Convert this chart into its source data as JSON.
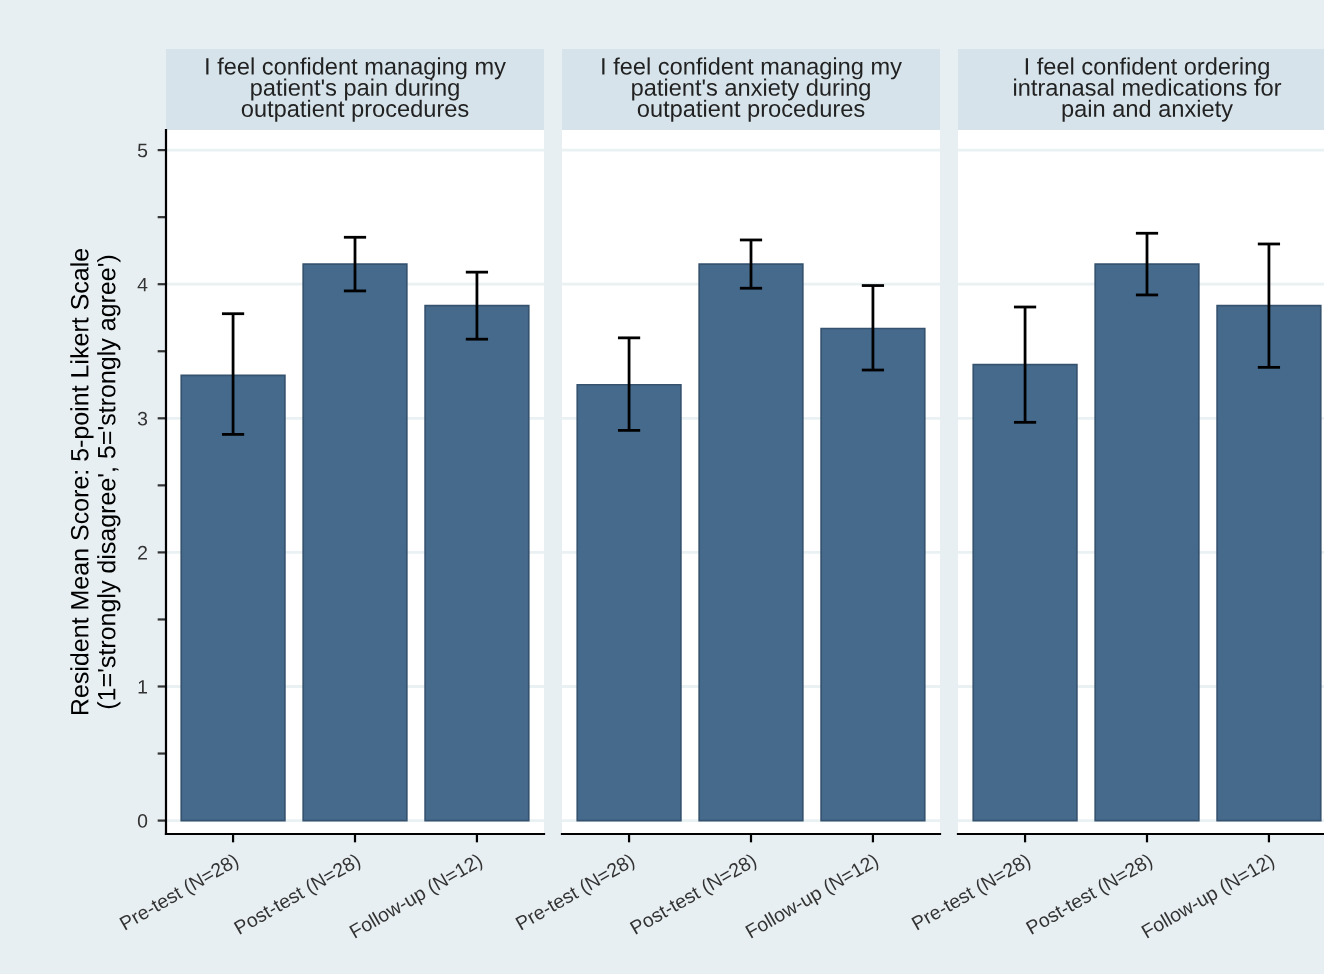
{
  "chart_data": [
    {
      "type": "bar",
      "title": "I feel confident managing my\npatient's pain during\noutpatient procedures",
      "ylabel": "Resident Mean Score: 5-point Likert Scale\n(1='strongly disagree', 5='strongly agree')",
      "categories": [
        "Pre-test (N=28)",
        "Post-test (N=28)",
        "Follow-up (N=12)"
      ],
      "values": [
        3.32,
        4.15,
        3.84
      ],
      "errors": [
        [
          2.88,
          3.78
        ],
        [
          3.95,
          4.35
        ],
        [
          3.59,
          4.09
        ]
      ],
      "color": "#466a8c",
      "ylim": [
        -0.1,
        5.15
      ],
      "yticks": [
        0,
        {
          "value": 0.5,
          "label": null
        },
        1,
        {
          "value": 1.5,
          "label": null
        },
        2,
        {
          "value": 2.5,
          "label": null
        },
        3,
        {
          "value": 3.5,
          "label": null
        },
        4,
        {
          "value": 4.5,
          "label": null
        },
        5
      ],
      "grid": "y"
    },
    {
      "type": "bar",
      "title": "I feel confident managing my\npatient's anxiety during\noutpatient procedures",
      "categories": [
        "Pre-test (N=28)",
        "Post-test (N=28)",
        "Follow-up (N=12)"
      ],
      "values": [
        3.25,
        4.15,
        3.67
      ],
      "errors": [
        [
          2.91,
          3.6
        ],
        [
          3.97,
          4.33
        ],
        [
          3.36,
          3.99
        ]
      ],
      "color": "#466a8c",
      "ylim": [
        -0.1,
        5.15
      ],
      "grid": "y",
      "tick_labels": "x"
    },
    {
      "type": "bar",
      "title": "I feel confident ordering\nintranasal medications for\npain and anxiety",
      "categories": [
        "Pre-test (N=28)",
        "Post-test (N=28)",
        "Follow-up (N=12)"
      ],
      "values": [
        3.4,
        4.15,
        3.84
      ],
      "errors": [
        [
          2.97,
          3.83
        ],
        [
          3.92,
          4.38
        ],
        [
          3.38,
          4.3
        ]
      ],
      "color": "#466a8c",
      "ylim": [
        -0.1,
        5.15
      ],
      "grid": "y",
      "tick_labels": "x"
    }
  ]
}
